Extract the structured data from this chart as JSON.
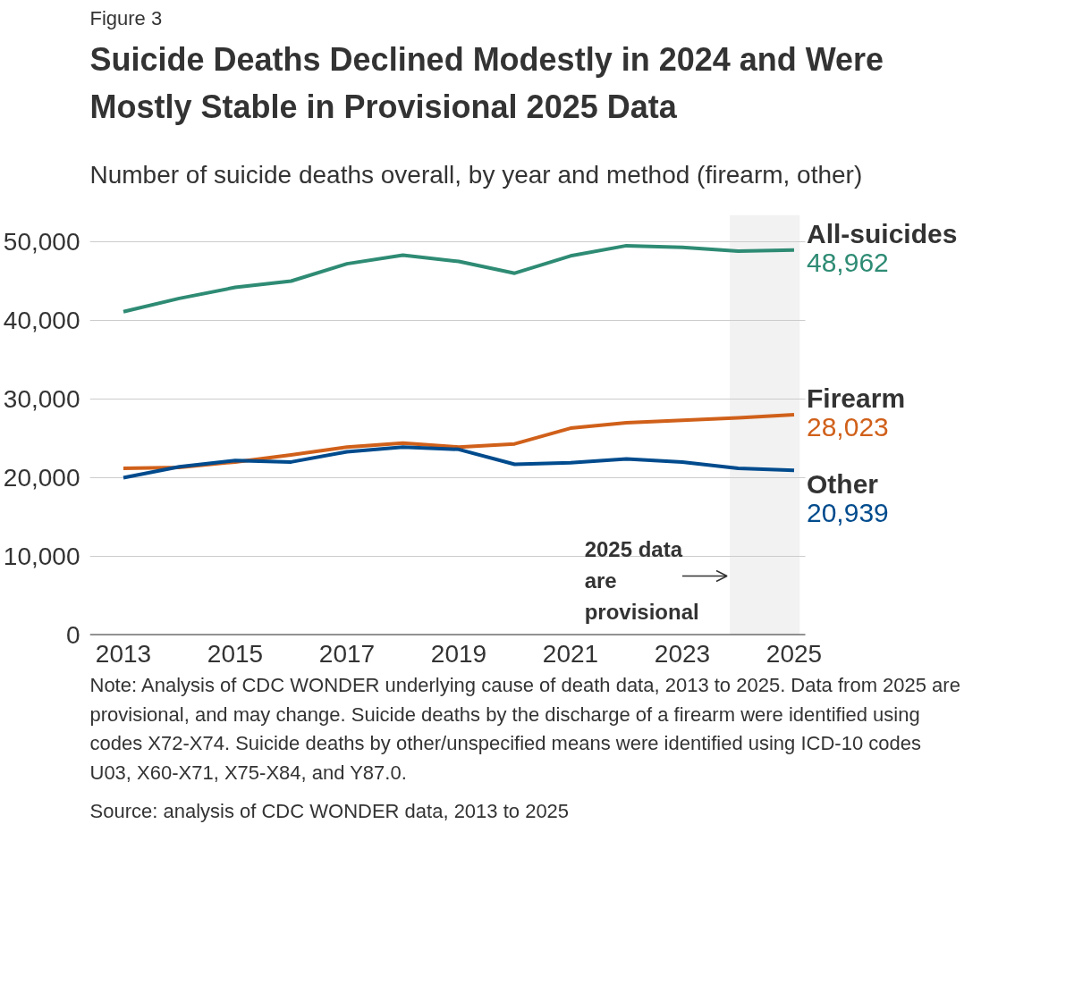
{
  "chart_data": {
    "type": "line",
    "title": "Suicide Deaths Declined Modestly in 2024 and Were Mostly Stable in Provisional 2025 Data",
    "subtitle": "Number of suicide deaths overall, by year and method (firearm, other)",
    "x": [
      2013,
      2014,
      2015,
      2016,
      2017,
      2018,
      2019,
      2020,
      2021,
      2022,
      2023,
      2024,
      2025
    ],
    "series": [
      {
        "name": "All-suicides",
        "color": "#2e8b74",
        "values": [
          41100,
          42800,
          44200,
          45000,
          47200,
          48300,
          47500,
          46000,
          48200,
          49500,
          49300,
          48800,
          48962
        ],
        "value_labels": [
          null,
          null,
          null,
          null,
          null,
          null,
          null,
          null,
          null,
          null,
          null,
          null,
          "48,962"
        ]
      },
      {
        "name": "Firearm",
        "color": "#d0601a",
        "values": [
          21200,
          21300,
          22000,
          22900,
          23900,
          24400,
          23900,
          24300,
          26300,
          27000,
          27300,
          27600,
          28023
        ],
        "value_labels": [
          null,
          null,
          null,
          null,
          null,
          null,
          null,
          null,
          null,
          null,
          null,
          null,
          "28,023"
        ]
      },
      {
        "name": "Other",
        "color": "#004b8d",
        "values": [
          20000,
          21400,
          22200,
          22000,
          23300,
          23900,
          23600,
          21700,
          21900,
          22400,
          22000,
          21200,
          20939
        ],
        "value_labels": [
          null,
          null,
          null,
          null,
          null,
          null,
          null,
          null,
          null,
          null,
          null,
          null,
          "20,939"
        ]
      }
    ],
    "xlim": [
      2012.4,
      2025.2
    ],
    "xticks": [
      2013,
      2015,
      2017,
      2019,
      2021,
      2023,
      2025
    ],
    "ylim": [
      0,
      50000
    ],
    "yticks": [
      {
        "value": 0,
        "label": "0"
      },
      {
        "value": 10000,
        "label": "10,000"
      },
      {
        "value": 20000,
        "label": "20,000"
      },
      {
        "value": 30000,
        "label": "30,000"
      },
      {
        "value": 40000,
        "label": "40,000"
      },
      {
        "value": 50000,
        "label": "50,000"
      }
    ],
    "grid": "y",
    "marker": "none",
    "line_style": "solid",
    "bands": [
      {
        "axis": "x",
        "from": 2023.85,
        "to": 2025.1,
        "label": "2025 data are provisional",
        "color": "#f2f2f2"
      }
    ],
    "annotations": [
      "Figure 3",
      "Note: Analysis of CDC WONDER underlying cause of death data, 2013 to 2025. Data from 2025 are provisional, and may change. Suicide deaths by the discharge of a firearm were identified using codes X72-X74. Suicide deaths by other/unspecified means were identified using ICD-10 codes U03, X60-X71, X75-X84, and Y87.0.",
      "Source: analysis of CDC WONDER data, 2013 to 2025"
    ]
  }
}
